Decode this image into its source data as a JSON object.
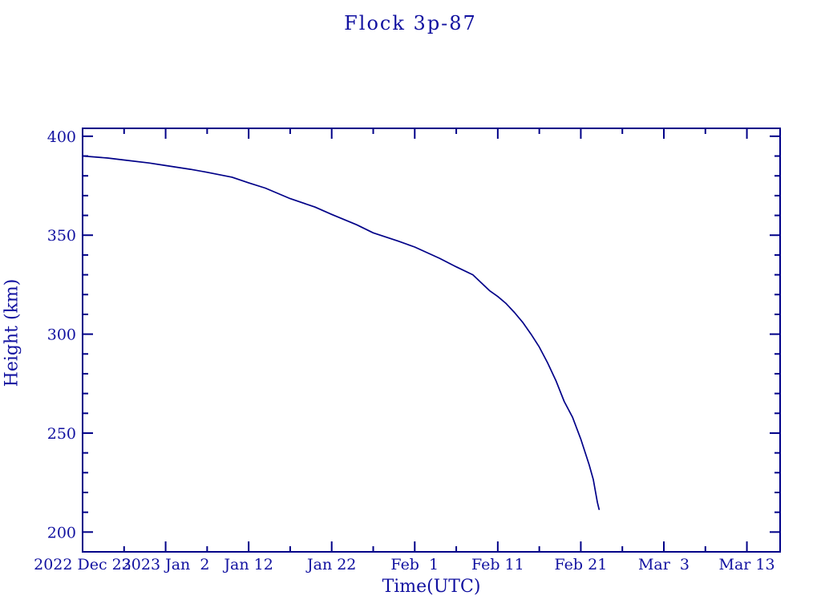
{
  "window": {
    "background": "#ffffff"
  },
  "colors": {
    "line": "#000088",
    "text": "#1111a0"
  },
  "chart_data": {
    "type": "line",
    "title": "Flock 3p-87",
    "xlabel": "Time(UTC)",
    "ylabel": "Height (km)",
    "grid": false,
    "legend": null,
    "x_axis": {
      "unit": "date",
      "epoch_label": "2022 Dec 23",
      "lim_days": [
        0,
        84
      ],
      "major_ticks": [
        {
          "day": 0,
          "label": "2022 Dec 23"
        },
        {
          "day": 10,
          "label": "2023 Jan  2"
        },
        {
          "day": 20,
          "label": "Jan 12"
        },
        {
          "day": 30,
          "label": "Jan 22"
        },
        {
          "day": 40,
          "label": "Feb  1"
        },
        {
          "day": 50,
          "label": "Feb 11"
        },
        {
          "day": 60,
          "label": "Feb 21"
        },
        {
          "day": 70,
          "label": "Mar  3"
        },
        {
          "day": 80,
          "label": "Mar 13"
        }
      ],
      "minor_ticks_days": [
        5,
        15,
        25,
        35,
        45,
        55,
        65,
        75
      ]
    },
    "y_axis": {
      "lim": [
        190,
        404
      ],
      "major_ticks": [
        {
          "value": 200,
          "label": "200"
        },
        {
          "value": 250,
          "label": "250"
        },
        {
          "value": 300,
          "label": "300"
        },
        {
          "value": 350,
          "label": "350"
        },
        {
          "value": 400,
          "label": "400"
        }
      ],
      "minor_ticks": [
        210,
        220,
        230,
        240,
        260,
        270,
        280,
        290,
        310,
        320,
        330,
        340,
        360,
        370,
        380,
        390
      ]
    },
    "series": [
      {
        "name": "Flock 3p-87",
        "points_day_km": [
          [
            0,
            390
          ],
          [
            3,
            389
          ],
          [
            5,
            388
          ],
          [
            8,
            386.5
          ],
          [
            10,
            385.2
          ],
          [
            13,
            383.3
          ],
          [
            15,
            381.8
          ],
          [
            18,
            379.3
          ],
          [
            20,
            376.5
          ],
          [
            22,
            373.8
          ],
          [
            25,
            368.5
          ],
          [
            28,
            364.2
          ],
          [
            30,
            360.5
          ],
          [
            33,
            355.3
          ],
          [
            35,
            351.2
          ],
          [
            38,
            347
          ],
          [
            40,
            344
          ],
          [
            43,
            338.3
          ],
          [
            45,
            334
          ],
          [
            47,
            330
          ],
          [
            49,
            322
          ],
          [
            50,
            319
          ],
          [
            51,
            315.5
          ],
          [
            52,
            311
          ],
          [
            53,
            306
          ],
          [
            54,
            300
          ],
          [
            55,
            293.5
          ],
          [
            56,
            285.5
          ],
          [
            57,
            276.5
          ],
          [
            58,
            266
          ],
          [
            59,
            258
          ],
          [
            60,
            247
          ],
          [
            61,
            234
          ],
          [
            61.5,
            226.5
          ],
          [
            62,
            215
          ],
          [
            62.2,
            211.5
          ]
        ]
      }
    ]
  }
}
